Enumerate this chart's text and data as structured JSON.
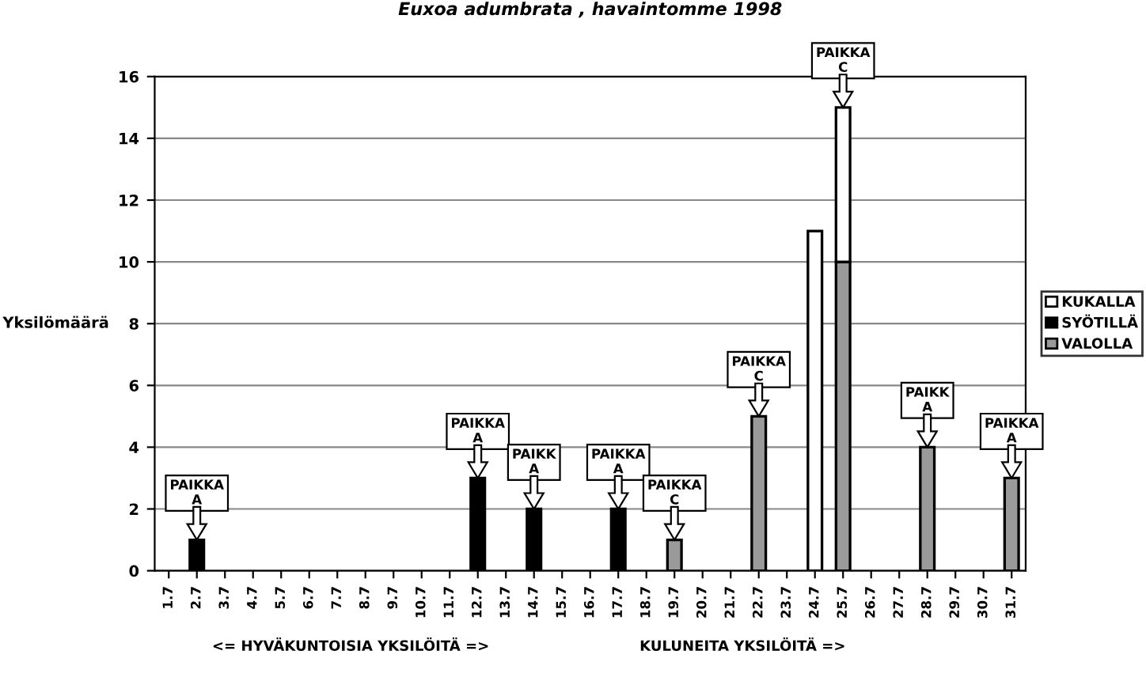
{
  "chart_data": {
    "type": "bar",
    "title": "Euxoa adumbrata , havaintomme 1998",
    "ylabel": "Yksilömäärä",
    "categories": [
      "1.7",
      "2.7",
      "3.7",
      "4.7",
      "5.7",
      "6.7",
      "7.7",
      "8.7",
      "9.7",
      "10.7",
      "11.7",
      "12.7",
      "13.7",
      "14.7",
      "15.7",
      "16.7",
      "17.7",
      "18.7",
      "19.7",
      "20.7",
      "21.7",
      "22.7",
      "23.7",
      "24.7",
      "25.7",
      "26.7",
      "27.7",
      "28.7",
      "29.7",
      "30.7",
      "31.7"
    ],
    "stacked": true,
    "series": [
      {
        "name": "VALOLLA",
        "color": "#9a9a9a",
        "values": [
          0,
          0,
          0,
          0,
          0,
          0,
          0,
          0,
          0,
          0,
          0,
          0,
          0,
          0,
          0,
          0,
          0,
          0,
          1,
          0,
          0,
          5,
          0,
          0,
          10,
          0,
          0,
          4,
          0,
          0,
          3
        ]
      },
      {
        "name": "SYÖTILLÄ",
        "color": "#000000",
        "values": [
          0,
          1,
          0,
          0,
          0,
          0,
          0,
          0,
          0,
          0,
          0,
          3,
          0,
          2,
          0,
          0,
          2,
          0,
          0,
          0,
          0,
          0,
          0,
          0,
          0,
          0,
          0,
          0,
          0,
          0,
          0
        ]
      },
      {
        "name": "KUKALLA",
        "color": "#ffffff",
        "values": [
          0,
          0,
          0,
          0,
          0,
          0,
          0,
          0,
          0,
          0,
          0,
          0,
          0,
          0,
          0,
          0,
          0,
          0,
          0,
          0,
          0,
          0,
          0,
          11,
          5,
          0,
          0,
          0,
          0,
          0,
          0
        ]
      }
    ],
    "ylim": [
      0,
      16
    ],
    "yticks": [
      0,
      2,
      4,
      6,
      8,
      10,
      12,
      14,
      16
    ],
    "grid": "y",
    "legend": "right",
    "annotations": [
      {
        "text": "PAIKKA\nA",
        "x": "2.7",
        "y": 1
      },
      {
        "text": "PAIKKA\nA",
        "x": "12.7",
        "y": 3
      },
      {
        "text": "PAIKK\nA",
        "x": "14.7",
        "y": 2
      },
      {
        "text": "PAIKKA\nA",
        "x": "17.7",
        "y": 2
      },
      {
        "text": "PAIKKA\nC",
        "x": "19.7",
        "y": 1
      },
      {
        "text": "PAIKKA\nC",
        "x": "22.7",
        "y": 5
      },
      {
        "text": "PAIKKA\nC",
        "x": "25.7",
        "y": 15
      },
      {
        "text": "PAIKK\nA",
        "x": "28.7",
        "y": 4
      },
      {
        "text": "PAIKKA\nA",
        "x": "31.7",
        "y": 3
      },
      "<= HYVÄKUNTOISIA YKSILÖITÄ =>",
      "KULUNEITA YKSILÖITÄ =>"
    ]
  }
}
